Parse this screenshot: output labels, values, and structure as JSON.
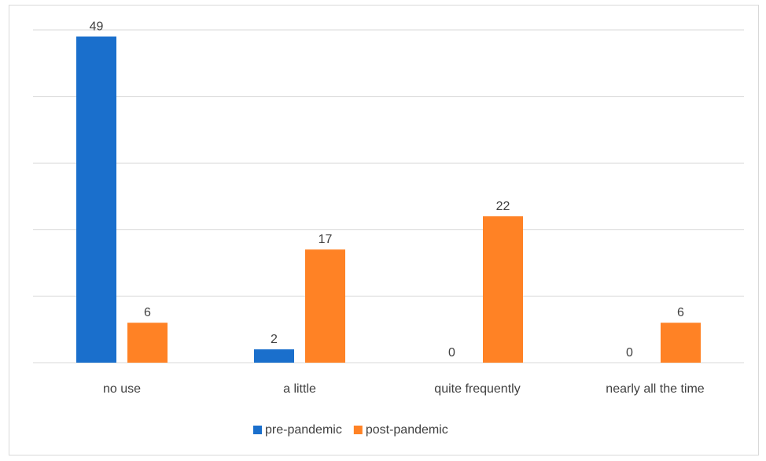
{
  "chart_data": {
    "type": "bar",
    "title": "",
    "xlabel": "",
    "ylabel": "",
    "categories": [
      "no use",
      "a little",
      "quite frequently",
      "nearly all the time"
    ],
    "series": [
      {
        "name": "pre-pandemic",
        "values": [
          49,
          2,
          0,
          0
        ],
        "color": "#1A6FCC"
      },
      {
        "name": "post-pandemic",
        "values": [
          6,
          17,
          22,
          6
        ],
        "color": "#FF8225"
      }
    ],
    "ylim": [
      0,
      50
    ],
    "ytick_labels_shown": false,
    "grid": true,
    "legend_position": "bottom",
    "data_labels": true
  }
}
